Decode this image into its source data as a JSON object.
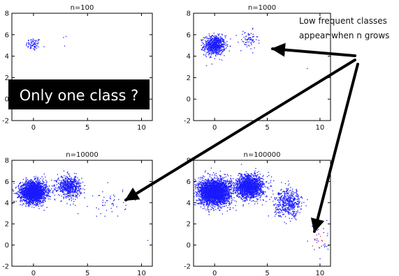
{
  "chart_data": [
    {
      "type": "scatter",
      "title": "n=100",
      "xlim": [
        -2,
        11
      ],
      "ylim": [
        -2,
        8
      ],
      "xticks": [
        "0",
        "5",
        "10"
      ],
      "yticks": [
        "8",
        "6",
        "4",
        "2",
        "0",
        "-2"
      ],
      "clusters": [
        {
          "cx": 0.0,
          "cy": 5.1,
          "sx": 0.35,
          "sy": 0.3,
          "n": 75,
          "color": "#1a1aff"
        },
        {
          "cx": 2.8,
          "cy": 5.5,
          "sx": 0.15,
          "sy": 0.5,
          "n": 3,
          "color": "#1a1aff"
        }
      ]
    },
    {
      "type": "scatter",
      "title": "n=1000",
      "xlim": [
        -2,
        11
      ],
      "ylim": [
        -2,
        8
      ],
      "xticks": [
        "0",
        "5",
        "10"
      ],
      "yticks": [
        "8",
        "6",
        "4",
        "2",
        "0",
        "-2"
      ],
      "clusters": [
        {
          "cx": 0.0,
          "cy": 5.0,
          "sx": 0.5,
          "sy": 0.45,
          "n": 700,
          "color": "#1a1aff"
        },
        {
          "cx": 3.2,
          "cy": 5.5,
          "sx": 0.45,
          "sy": 0.45,
          "n": 70,
          "color": "#1a1aff"
        },
        {
          "cx": 8.7,
          "cy": 2.8,
          "sx": 0.1,
          "sy": 0.1,
          "n": 1,
          "color": "#1a1aff"
        }
      ]
    },
    {
      "type": "scatter",
      "title": "n=10000",
      "xlim": [
        -2,
        11
      ],
      "ylim": [
        -2,
        8
      ],
      "xticks": [
        "0",
        "5",
        "10"
      ],
      "yticks": [
        "8",
        "6",
        "4",
        "2",
        "0",
        "-2"
      ],
      "clusters": [
        {
          "cx": 0.0,
          "cy": 5.0,
          "sx": 0.6,
          "sy": 0.5,
          "n": 2200,
          "color": "#1a1aff"
        },
        {
          "cx": 3.3,
          "cy": 5.5,
          "sx": 0.55,
          "sy": 0.5,
          "n": 600,
          "color": "#1a1aff"
        },
        {
          "cx": 7.0,
          "cy": 4.0,
          "sx": 0.8,
          "sy": 0.7,
          "n": 45,
          "color": "#1a1aff"
        },
        {
          "cx": 10.6,
          "cy": 0.7,
          "sx": 0.1,
          "sy": 0.1,
          "n": 1,
          "color": "#1a1aff"
        }
      ]
    },
    {
      "type": "scatter",
      "title": "n=100000",
      "xlim": [
        -2,
        11
      ],
      "ylim": [
        -2,
        8
      ],
      "xticks": [
        "0",
        "5",
        "10"
      ],
      "yticks": [
        "8",
        "6",
        "4",
        "2",
        "0",
        "-2"
      ],
      "clusters": [
        {
          "cx": 0.0,
          "cy": 5.0,
          "sx": 0.75,
          "sy": 0.6,
          "n": 3000,
          "color": "#1a1aff"
        },
        {
          "cx": 3.3,
          "cy": 5.5,
          "sx": 0.65,
          "sy": 0.55,
          "n": 1600,
          "color": "#1a1aff"
        },
        {
          "cx": 7.0,
          "cy": 4.0,
          "sx": 0.65,
          "sy": 0.65,
          "n": 500,
          "color": "#1a1aff"
        },
        {
          "cx": 10.0,
          "cy": 0.5,
          "sx": 0.55,
          "sy": 0.8,
          "n": 28,
          "color": "#1a1aff"
        },
        {
          "cx": 10.1,
          "cy": 0.2,
          "sx": 0.35,
          "sy": 0.45,
          "n": 7,
          "color": "#ff2222"
        }
      ]
    }
  ],
  "annotation": {
    "line1": "Low frequent classes",
    "line2": "appear when n grows"
  },
  "callout": {
    "text": "Only one class ?"
  },
  "colors": {
    "points": "#1a1aff",
    "rare_class": "#ff2222",
    "axes": "#000000",
    "callout_bg": "#000000",
    "callout_text": "#ffffff"
  }
}
